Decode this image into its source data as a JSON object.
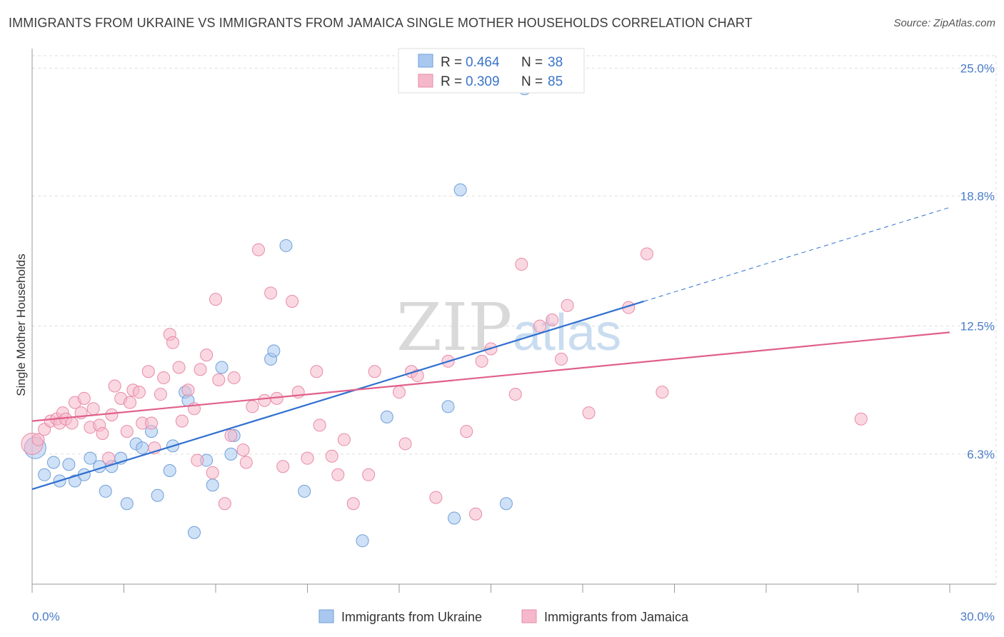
{
  "title": "IMMIGRANTS FROM UKRAINE VS IMMIGRANTS FROM JAMAICA SINGLE MOTHER HOUSEHOLDS CORRELATION CHART",
  "source": "Source: ZipAtlas.com",
  "watermark": {
    "part1": "ZIP",
    "part2": "atlas"
  },
  "legend_top": [
    {
      "r_label": "R = ",
      "r_value": "0.464",
      "n_label": "N = ",
      "n_value": "38",
      "color": "#a8c8f0"
    },
    {
      "r_label": "R = ",
      "r_value": "0.309",
      "n_label": "N = ",
      "n_value": "85",
      "color": "#f5b8cb"
    }
  ],
  "chart_data": {
    "type": "scatter",
    "title": "IMMIGRANTS FROM UKRAINE VS IMMIGRANTS FROM JAMAICA SINGLE MOTHER HOUSEHOLDS CORRELATION CHART",
    "xlabel": "",
    "ylabel": "Single Mother Households",
    "xlim": [
      0,
      30
    ],
    "ylim": [
      0,
      25.6
    ],
    "x_tick_labels": [
      "0.0%",
      "30.0%"
    ],
    "y_ticks": [
      6.3,
      12.5,
      18.8,
      25.0
    ],
    "y_tick_labels": [
      "6.3%",
      "12.5%",
      "18.8%",
      "25.0%"
    ],
    "grid": true,
    "legend_placement": "bottom",
    "series": [
      {
        "name": "Immigrants from Ukraine",
        "color": "#a8c8f0",
        "stroke": "#6f9fd8",
        "line_color": "#2f6fd0",
        "trend": {
          "x0": 0,
          "y0": 4.6,
          "x1": 20,
          "y1": 13.7
        },
        "points": [
          [
            0.1,
            6.6
          ],
          [
            0.4,
            5.3
          ],
          [
            0.7,
            5.9
          ],
          [
            0.9,
            5.0
          ],
          [
            1.2,
            5.8
          ],
          [
            1.4,
            5.0
          ],
          [
            1.7,
            5.3
          ],
          [
            1.9,
            6.1
          ],
          [
            2.2,
            5.7
          ],
          [
            2.4,
            4.5
          ],
          [
            2.6,
            5.7
          ],
          [
            2.9,
            6.1
          ],
          [
            3.1,
            3.9
          ],
          [
            3.4,
            6.8
          ],
          [
            3.6,
            6.6
          ],
          [
            3.9,
            7.4
          ],
          [
            4.1,
            4.3
          ],
          [
            4.5,
            5.5
          ],
          [
            4.6,
            6.7
          ],
          [
            5.0,
            9.3
          ],
          [
            5.1,
            8.9
          ],
          [
            5.3,
            2.5
          ],
          [
            5.7,
            6.0
          ],
          [
            5.9,
            4.8
          ],
          [
            6.2,
            10.5
          ],
          [
            6.5,
            6.3
          ],
          [
            6.6,
            7.2
          ],
          [
            7.8,
            10.9
          ],
          [
            7.9,
            11.3
          ],
          [
            8.3,
            16.4
          ],
          [
            8.9,
            4.5
          ],
          [
            10.8,
            2.1
          ],
          [
            11.6,
            8.1
          ],
          [
            13.6,
            8.6
          ],
          [
            13.8,
            3.2
          ],
          [
            14.0,
            19.1
          ],
          [
            15.5,
            3.9
          ],
          [
            16.1,
            24.0
          ]
        ]
      },
      {
        "name": "Immigrants from Jamaica",
        "color": "#f5b8cb",
        "stroke": "#e88aa8",
        "line_color": "#e0608a",
        "trend": {
          "x0": 0,
          "y0": 7.9,
          "x1": 30,
          "y1": 12.2
        },
        "points": [
          [
            0.0,
            6.8
          ],
          [
            0.2,
            7.0
          ],
          [
            0.4,
            7.5
          ],
          [
            0.6,
            7.9
          ],
          [
            0.8,
            8.0
          ],
          [
            0.9,
            7.8
          ],
          [
            1.0,
            8.3
          ],
          [
            1.1,
            8.0
          ],
          [
            1.3,
            7.8
          ],
          [
            1.4,
            8.8
          ],
          [
            1.6,
            8.3
          ],
          [
            1.7,
            9.0
          ],
          [
            1.9,
            7.6
          ],
          [
            2.0,
            8.5
          ],
          [
            2.2,
            7.7
          ],
          [
            2.3,
            7.3
          ],
          [
            2.5,
            6.1
          ],
          [
            2.6,
            8.2
          ],
          [
            2.7,
            9.6
          ],
          [
            2.9,
            9.0
          ],
          [
            3.1,
            7.4
          ],
          [
            3.2,
            8.8
          ],
          [
            3.3,
            9.4
          ],
          [
            3.5,
            9.3
          ],
          [
            3.6,
            7.8
          ],
          [
            3.8,
            10.3
          ],
          [
            3.9,
            7.8
          ],
          [
            4.0,
            6.6
          ],
          [
            4.2,
            9.2
          ],
          [
            4.3,
            10.0
          ],
          [
            4.5,
            12.1
          ],
          [
            4.6,
            11.7
          ],
          [
            4.8,
            10.5
          ],
          [
            4.9,
            7.9
          ],
          [
            5.1,
            9.4
          ],
          [
            5.3,
            8.5
          ],
          [
            5.4,
            6.0
          ],
          [
            5.5,
            10.4
          ],
          [
            5.7,
            11.1
          ],
          [
            5.9,
            5.4
          ],
          [
            6.0,
            13.8
          ],
          [
            6.1,
            9.9
          ],
          [
            6.3,
            3.9
          ],
          [
            6.5,
            7.2
          ],
          [
            6.6,
            10.0
          ],
          [
            6.9,
            6.5
          ],
          [
            7.0,
            5.9
          ],
          [
            7.2,
            8.6
          ],
          [
            7.4,
            16.2
          ],
          [
            7.6,
            8.9
          ],
          [
            7.8,
            14.1
          ],
          [
            8.0,
            9.0
          ],
          [
            8.2,
            5.7
          ],
          [
            8.5,
            13.7
          ],
          [
            8.7,
            9.3
          ],
          [
            9.0,
            6.1
          ],
          [
            9.3,
            10.3
          ],
          [
            9.4,
            7.7
          ],
          [
            9.8,
            6.2
          ],
          [
            10.0,
            5.3
          ],
          [
            10.2,
            7.0
          ],
          [
            10.5,
            3.9
          ],
          [
            11.0,
            5.3
          ],
          [
            11.2,
            10.3
          ],
          [
            12.0,
            9.3
          ],
          [
            12.2,
            6.8
          ],
          [
            12.4,
            10.3
          ],
          [
            12.6,
            10.1
          ],
          [
            13.2,
            4.2
          ],
          [
            13.6,
            10.8
          ],
          [
            14.2,
            7.4
          ],
          [
            14.5,
            3.4
          ],
          [
            14.7,
            10.8
          ],
          [
            15.0,
            11.4
          ],
          [
            15.8,
            9.2
          ],
          [
            16.0,
            15.5
          ],
          [
            16.6,
            12.5
          ],
          [
            17.0,
            12.8
          ],
          [
            17.3,
            10.9
          ],
          [
            17.5,
            13.5
          ],
          [
            18.2,
            8.3
          ],
          [
            19.5,
            13.4
          ],
          [
            20.1,
            16.0
          ],
          [
            20.6,
            9.3
          ],
          [
            27.1,
            8.0
          ]
        ]
      }
    ]
  },
  "bottom_legend": [
    {
      "label": "Immigrants from Ukraine",
      "color": "#a8c8f0",
      "stroke": "#6f9fd8"
    },
    {
      "label": "Immigrants from Jamaica",
      "color": "#f5b8cb",
      "stroke": "#e88aa8"
    }
  ]
}
